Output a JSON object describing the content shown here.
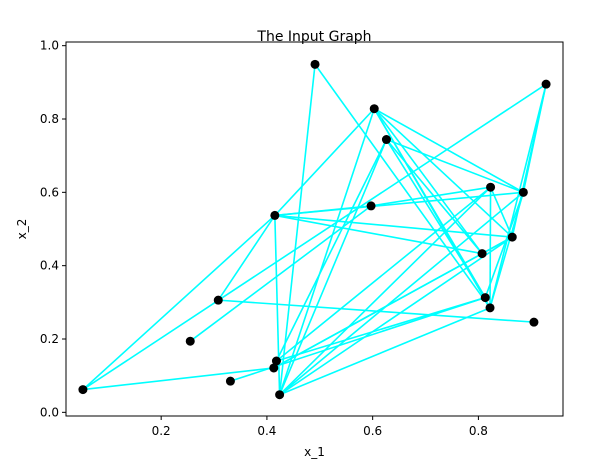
{
  "chart_data": {
    "type": "scatter",
    "title": "The Input Graph",
    "xlabel": "x_1",
    "ylabel": "x_2",
    "xlim": [
      0.02,
      0.96
    ],
    "ylim": [
      -0.01,
      1.01
    ],
    "xticks": [
      0.2,
      0.4,
      0.6,
      0.8
    ],
    "yticks": [
      0.0,
      0.2,
      0.4,
      0.6,
      0.8,
      1.0
    ],
    "xtick_labels": [
      "0.2",
      "0.4",
      "0.6",
      "0.8"
    ],
    "ytick_labels": [
      "0.0",
      "0.2",
      "0.4",
      "0.6",
      "0.8",
      "1.0"
    ],
    "grid": false,
    "node_color": "#000000",
    "edge_color": "#00ffff",
    "nodes": [
      {
        "x": 0.052,
        "y": 0.062
      },
      {
        "x": 0.255,
        "y": 0.194
      },
      {
        "x": 0.308,
        "y": 0.306
      },
      {
        "x": 0.331,
        "y": 0.085
      },
      {
        "x": 0.413,
        "y": 0.121
      },
      {
        "x": 0.418,
        "y": 0.14
      },
      {
        "x": 0.415,
        "y": 0.537
      },
      {
        "x": 0.424,
        "y": 0.048
      },
      {
        "x": 0.491,
        "y": 0.949
      },
      {
        "x": 0.597,
        "y": 0.563
      },
      {
        "x": 0.603,
        "y": 0.828
      },
      {
        "x": 0.626,
        "y": 0.744
      },
      {
        "x": 0.807,
        "y": 0.433
      },
      {
        "x": 0.813,
        "y": 0.313
      },
      {
        "x": 0.822,
        "y": 0.285
      },
      {
        "x": 0.823,
        "y": 0.614
      },
      {
        "x": 0.864,
        "y": 0.478
      },
      {
        "x": 0.885,
        "y": 0.6
      },
      {
        "x": 0.905,
        "y": 0.246
      },
      {
        "x": 0.928,
        "y": 0.895
      }
    ],
    "edges": [
      [
        0,
        4
      ],
      [
        0,
        19
      ],
      [
        0,
        6
      ],
      [
        1,
        9
      ],
      [
        2,
        18
      ],
      [
        2,
        6
      ],
      [
        3,
        13
      ],
      [
        4,
        12
      ],
      [
        5,
        15
      ],
      [
        6,
        7
      ],
      [
        6,
        9
      ],
      [
        6,
        10
      ],
      [
        6,
        17
      ],
      [
        6,
        16
      ],
      [
        6,
        12
      ],
      [
        7,
        11
      ],
      [
        7,
        15
      ],
      [
        7,
        17
      ],
      [
        7,
        10
      ],
      [
        7,
        16
      ],
      [
        7,
        14
      ],
      [
        8,
        7
      ],
      [
        8,
        14
      ],
      [
        9,
        15
      ],
      [
        10,
        17
      ],
      [
        10,
        12
      ],
      [
        10,
        16
      ],
      [
        10,
        13
      ],
      [
        10,
        14
      ],
      [
        11,
        12
      ],
      [
        11,
        13
      ],
      [
        11,
        17
      ],
      [
        11,
        5
      ],
      [
        12,
        16
      ],
      [
        13,
        17
      ],
      [
        13,
        5
      ],
      [
        14,
        17
      ],
      [
        14,
        19
      ],
      [
        15,
        16
      ],
      [
        15,
        14
      ],
      [
        16,
        19
      ],
      [
        16,
        4
      ],
      [
        17,
        19
      ]
    ]
  }
}
